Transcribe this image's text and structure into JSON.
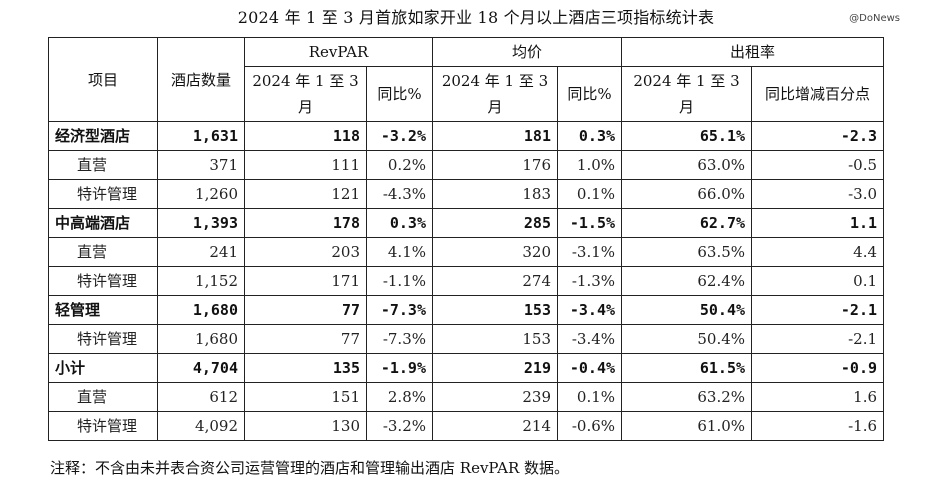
{
  "title": "2024 年 1 至 3 月首旅如家开业 18 个月以上酒店三项指标统计表",
  "watermark": "@DoNews",
  "header": {
    "item": "项目",
    "hotel_count": "酒店数量",
    "revpar": "RevPAR",
    "avg_price": "均价",
    "occupancy": "出租率",
    "period": "2024 年 1 至 3 月",
    "yoy": "同比%",
    "yoy_points": "同比增减百分点"
  },
  "rows": [
    {
      "name": "经济型酒店",
      "type": "cat",
      "count": "1,631",
      "revpar": "118",
      "revpar_yoy": "-3.2%",
      "price": "181",
      "price_yoy": "0.3%",
      "occ": "65.1%",
      "occ_yoy": "-2.3"
    },
    {
      "name": "直营",
      "type": "sub",
      "count": "371",
      "revpar": "111",
      "revpar_yoy": "0.2%",
      "price": "176",
      "price_yoy": "1.0%",
      "occ": "63.0%",
      "occ_yoy": "-0.5"
    },
    {
      "name": "特许管理",
      "type": "sub",
      "count": "1,260",
      "revpar": "121",
      "revpar_yoy": "-4.3%",
      "price": "183",
      "price_yoy": "0.1%",
      "occ": "66.0%",
      "occ_yoy": "-3.0"
    },
    {
      "name": "中高端酒店",
      "type": "cat",
      "count": "1,393",
      "revpar": "178",
      "revpar_yoy": "0.3%",
      "price": "285",
      "price_yoy": "-1.5%",
      "occ": "62.7%",
      "occ_yoy": "1.1"
    },
    {
      "name": "直营",
      "type": "sub",
      "count": "241",
      "revpar": "203",
      "revpar_yoy": "4.1%",
      "price": "320",
      "price_yoy": "-3.1%",
      "occ": "63.5%",
      "occ_yoy": "4.4"
    },
    {
      "name": "特许管理",
      "type": "sub",
      "count": "1,152",
      "revpar": "171",
      "revpar_yoy": "-1.1%",
      "price": "274",
      "price_yoy": "-1.3%",
      "occ": "62.4%",
      "occ_yoy": "0.1"
    },
    {
      "name": "轻管理",
      "type": "cat",
      "count": "1,680",
      "revpar": "77",
      "revpar_yoy": "-7.3%",
      "price": "153",
      "price_yoy": "-3.4%",
      "occ": "50.4%",
      "occ_yoy": "-2.1"
    },
    {
      "name": "特许管理",
      "type": "sub",
      "count": "1,680",
      "revpar": "77",
      "revpar_yoy": "-7.3%",
      "price": "153",
      "price_yoy": "-3.4%",
      "occ": "50.4%",
      "occ_yoy": "-2.1"
    },
    {
      "name": "小计",
      "type": "cat",
      "count": "4,704",
      "revpar": "135",
      "revpar_yoy": "-1.9%",
      "price": "219",
      "price_yoy": "-0.4%",
      "occ": "61.5%",
      "occ_yoy": "-0.9"
    },
    {
      "name": "直营",
      "type": "sub",
      "count": "612",
      "revpar": "151",
      "revpar_yoy": "2.8%",
      "price": "239",
      "price_yoy": "0.1%",
      "occ": "63.2%",
      "occ_yoy": "1.6"
    },
    {
      "name": "特许管理",
      "type": "sub",
      "count": "4,092",
      "revpar": "130",
      "revpar_yoy": "-3.2%",
      "price": "214",
      "price_yoy": "-0.6%",
      "occ": "61.0%",
      "occ_yoy": "-1.6"
    }
  ],
  "note": "注释：不含由未并表合资公司运营管理的酒店和管理输出酒店 RevPAR 数据。"
}
